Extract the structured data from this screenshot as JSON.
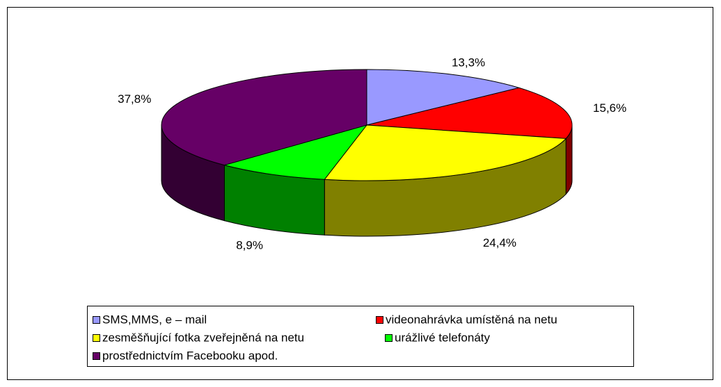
{
  "chart_data": {
    "type": "pie3d",
    "categories": [
      "SMS,MMS, e – mail",
      "videonahrávka umístěná na netu",
      "zesměšňující fotka zveřejněná na netu",
      "urážlivé telefonáty",
      "prostřednictvím Facebooku apod."
    ],
    "values": [
      13.3,
      15.6,
      24.4,
      8.9,
      37.8
    ],
    "value_labels": [
      "13,3%",
      "15,6%",
      "24,4%",
      "8,9%",
      "37,8%"
    ],
    "colors": [
      "#9999ff",
      "#ff0000",
      "#ffff00",
      "#00ff00",
      "#660066"
    ],
    "side_colors": [
      "#6666b3",
      "#800000",
      "#808000",
      "#008000",
      "#330033"
    ],
    "legend": "bottom"
  }
}
